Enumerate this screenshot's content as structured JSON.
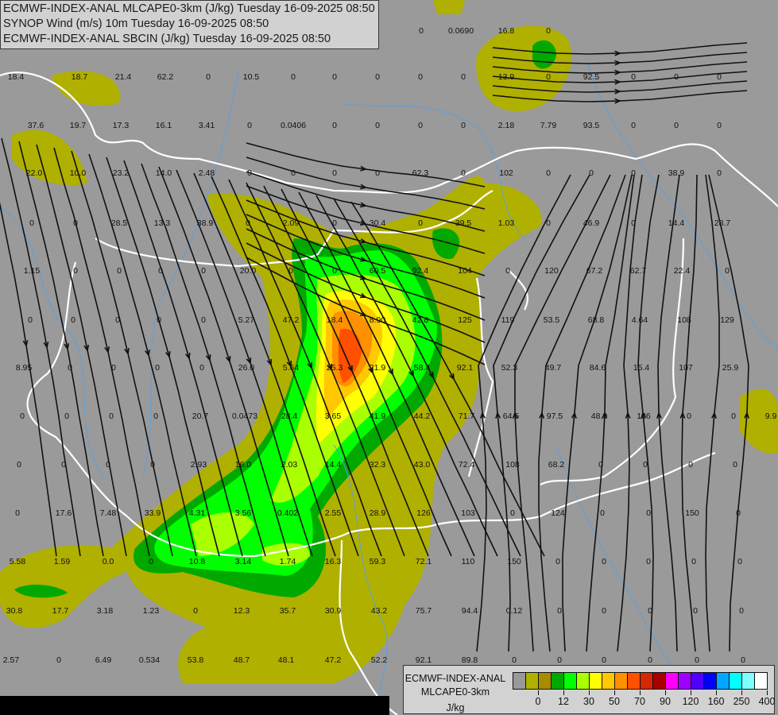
{
  "header": {
    "lines": [
      "ECMWF-INDEX-ANAL MLCAPE0-3km (J/kg) Tuesday 16-09-2025 08:50",
      "SYNOP Wind (m/s) 10m Tuesday 16-09-2025 08:50",
      "ECMWF-INDEX-ANAL SBCIN (J/kg) Tuesday 16-09-2025 08:50"
    ]
  },
  "legend": {
    "title_lines": [
      "ECMWF-INDEX-ANAL",
      "MLCAPE0-3km",
      "J/kg"
    ],
    "colors": [
      "#999999",
      "#b0b000",
      "#a88c00",
      "#00a800",
      "#00ff00",
      "#aaff00",
      "#ffff00",
      "#ffc800",
      "#ff9000",
      "#ff5000",
      "#d42800",
      "#a80000",
      "#ff00ff",
      "#a000ff",
      "#5000ff",
      "#0000ff",
      "#00a8ff",
      "#00ffff",
      "#80ffff",
      "#ffffff"
    ],
    "ticks": [
      "0",
      "12",
      "30",
      "50",
      "70",
      "90",
      "120",
      "160",
      "250",
      "400"
    ]
  },
  "map_colors": {
    "background": "#9a9a9a",
    "low_cape": "#b0b000",
    "border": "#ffffff",
    "river": "#5aa0e0",
    "streamline": "#111111"
  },
  "station_values": [
    "0",
    "0.0690",
    "16.8",
    "0",
    "18.4",
    "18.7",
    "21.4",
    "62.2",
    "0",
    "10.5",
    "0",
    "0",
    "0",
    "0",
    "0",
    "13.9",
    "0",
    "92.5",
    "0",
    "0",
    "0",
    "37.6",
    "19.7",
    "17.3",
    "16.1",
    "3.41",
    "0",
    "0.0406",
    "0",
    "0",
    "0",
    "0",
    "2.18",
    "7.79",
    "93.5",
    "0",
    "0",
    "0",
    "22.0",
    "10.0",
    "23.2",
    "14.0",
    "2.48",
    "0",
    "0",
    "0",
    "0",
    "62.3",
    "0",
    "102",
    "0",
    "0",
    "0",
    "38.9",
    "0",
    "0",
    "0",
    "28.5",
    "13.3",
    "38.9",
    "0",
    "2.09",
    "0",
    "30.4",
    "0",
    "39.5",
    "1.03",
    "0",
    "46.9",
    "0",
    "14.4",
    "28.7",
    "1.15",
    "0",
    "0",
    "0",
    "0",
    "20.0",
    "0",
    "0",
    "60.5",
    "92.4",
    "104",
    "0",
    "120",
    "67.2",
    "62.7",
    "22.4",
    "0",
    "0",
    "0",
    "0",
    "0",
    "0",
    "5.27",
    "47.2",
    "18.4",
    "8.90",
    "42.8",
    "125",
    "119",
    "53.5",
    "68.8",
    "4.64",
    "108",
    "129",
    "8.95",
    "0",
    "0",
    "0",
    "0",
    "26.0",
    "5.64",
    "25.3",
    "21.9",
    "58.4",
    "92.1",
    "52.3",
    "49.7",
    "84.6",
    "15.4",
    "107",
    "25.9",
    "0",
    "0",
    "0",
    "0",
    "20.7",
    "0.0473",
    "28.4",
    "3.65",
    "41.9",
    "44.2",
    "71.7",
    "64.5",
    "97.5",
    "48.9",
    "136",
    "0",
    "0",
    "9.9",
    "0",
    "0",
    "0",
    "0",
    "2.93",
    "16.0",
    "2.03",
    "14.4",
    "32.3",
    "43.0",
    "72.4",
    "108",
    "68.2",
    "0",
    "0",
    "0",
    "0",
    "0",
    "17.6",
    "7.48",
    "33.9",
    "4.31",
    "3.56",
    "0.402",
    "2.55",
    "28.9",
    "126",
    "103",
    "0",
    "124",
    "0",
    "0",
    "150",
    "0",
    "5.58",
    "1.59",
    "0.0",
    "0",
    "10.8",
    "3.14",
    "1.74",
    "16.3",
    "59.3",
    "72.1",
    "110",
    "150",
    "0",
    "0",
    "0",
    "0",
    "0",
    "30.8",
    "17.7",
    "3.18",
    "1.23",
    "0",
    "12.3",
    "35.7",
    "30.9",
    "43.2",
    "75.7",
    "94.4",
    "0.12",
    "0",
    "0",
    "0",
    "0",
    "0",
    "2.57",
    "0",
    "6.49",
    "0.534",
    "53.8",
    "48.7",
    "48.1",
    "47.2",
    "52.2",
    "92.1",
    "89.8",
    "0",
    "0",
    "0",
    "0",
    "0",
    "0"
  ]
}
